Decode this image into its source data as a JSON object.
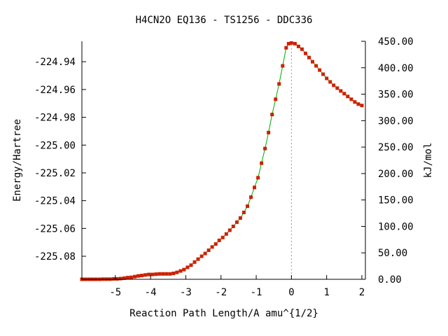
{
  "chart_data": {
    "type": "line",
    "title": "H4CN2O   EQ136 - TS1256 - DDC336",
    "xlabel": "Reaction Path Length/A amu^{1/2}",
    "ylabel": "Energy/Hartree",
    "y2label": "kJ/mol",
    "xlim": [
      -5.95,
      2.1
    ],
    "ylim": [
      -225.0966,
      -224.9253
    ],
    "y2lim": [
      0,
      450
    ],
    "x_ticks": [
      -5,
      -4,
      -3,
      -2,
      -1,
      0,
      1,
      2
    ],
    "x_tick_labels": [
      "-5",
      "-4",
      "-3",
      "-2",
      "-1",
      "0",
      "1",
      "2"
    ],
    "y_ticks": [
      -224.94,
      -224.96,
      -224.98,
      -225.0,
      -225.02,
      -225.04,
      -225.06,
      -225.08
    ],
    "y_tick_labels": [
      "-224.94",
      "-224.96",
      "-224.98",
      "-225.00",
      "-225.02",
      "-225.04",
      "-225.06",
      "-225.08"
    ],
    "y2_ticks": [
      0,
      50,
      100,
      150,
      200,
      250,
      300,
      350,
      400,
      450
    ],
    "y2_tick_labels": [
      "0.00",
      "50.00",
      "100.00",
      "150.00",
      "200.00",
      "250.00",
      "300.00",
      "350.00",
      "400.00",
      "450.00"
    ],
    "ts_x": 0,
    "grid": false,
    "line_color": "#00aa00",
    "marker_color": "#cc2200",
    "series": [
      {
        "x": [
          -5.95,
          -5.85,
          -5.75,
          -5.65,
          -5.55,
          -5.45,
          -5.35,
          -5.25,
          -5.15,
          -5.05,
          -4.95,
          -4.85,
          -4.75,
          -4.65,
          -4.55,
          -4.45,
          -4.35,
          -4.25,
          -4.15,
          -4.05,
          -3.95,
          -3.85,
          -3.75,
          -3.65,
          -3.55,
          -3.45,
          -3.35,
          -3.25,
          -3.15,
          -3.05,
          -2.95,
          -2.85,
          -2.75,
          -2.65,
          -2.55,
          -2.45,
          -2.35,
          -2.25,
          -2.15,
          -2.05,
          -1.95,
          -1.85,
          -1.75,
          -1.65,
          -1.55,
          -1.45,
          -1.35,
          -1.25,
          -1.15,
          -1.05,
          -0.95,
          -0.85,
          -0.75,
          -0.65,
          -0.55,
          -0.45,
          -0.35,
          -0.25,
          -0.15,
          -0.08,
          0,
          0.1,
          0.2,
          0.3,
          0.4,
          0.5,
          0.6,
          0.7,
          0.8,
          0.9,
          1.0,
          1.1,
          1.2,
          1.3,
          1.4,
          1.5,
          1.6,
          1.7,
          1.8,
          1.9,
          2.0
        ],
        "y": [
          -225.0966,
          -225.0966,
          -225.0966,
          -225.0966,
          -225.0966,
          -225.0966,
          -225.0965,
          -225.0965,
          -225.0965,
          -225.0963,
          -225.0963,
          -225.0961,
          -225.0958,
          -225.0954,
          -225.0952,
          -225.0947,
          -225.0942,
          -225.0939,
          -225.0935,
          -225.0931,
          -225.0931,
          -225.0929,
          -225.0927,
          -225.0927,
          -225.0927,
          -225.0927,
          -225.0923,
          -225.0916,
          -225.0906,
          -225.0896,
          -225.088,
          -225.0864,
          -225.0842,
          -225.0821,
          -225.08,
          -225.078,
          -225.0757,
          -225.0733,
          -225.0712,
          -225.0686,
          -225.0665,
          -225.064,
          -225.0613,
          -225.0585,
          -225.0555,
          -225.0525,
          -225.0485,
          -225.044,
          -225.0375,
          -225.0305,
          -225.0235,
          -225.013,
          -225.0025,
          -224.991,
          -224.978,
          -224.967,
          -224.956,
          -224.943,
          -224.93,
          -224.927,
          -224.9265,
          -224.927,
          -224.929,
          -224.931,
          -224.934,
          -224.937,
          -224.94,
          -224.943,
          -224.946,
          -224.949,
          -224.952,
          -224.9545,
          -224.957,
          -224.959,
          -224.961,
          -224.963,
          -224.965,
          -224.967,
          -224.969,
          -224.9705,
          -224.9715
        ]
      }
    ]
  }
}
